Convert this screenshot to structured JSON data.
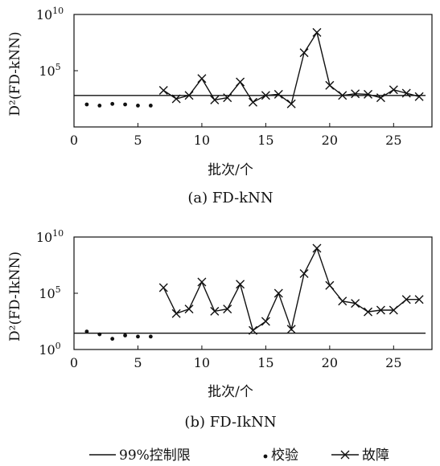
{
  "chart_data": [
    {
      "type": "line",
      "caption": "(a)  FD-kNN",
      "ylabel": "D²(FD-kNN)",
      "xlabel": "批次/个",
      "xlim": [
        0,
        28
      ],
      "ylim_log10": [
        0,
        10
      ],
      "y_scale": "log",
      "x_ticks": [
        0,
        5,
        10,
        15,
        20,
        25
      ],
      "y_ticks": [
        {
          "label": "10",
          "sup": "10",
          "log10": 10
        },
        {
          "label": "10",
          "sup": "5",
          "log10": 5
        }
      ],
      "control_limit_log10": 2.8,
      "series": [
        {
          "name": "校验",
          "x": [
            1,
            2,
            3,
            4,
            5,
            6
          ],
          "y_log10": [
            2.0,
            1.9,
            2.05,
            2.0,
            1.9,
            1.9
          ]
        },
        {
          "name": "故障",
          "x": [
            7,
            8,
            9,
            10,
            11,
            12,
            13,
            14,
            15,
            16,
            17,
            18,
            19,
            20,
            21,
            22,
            23,
            24,
            25,
            26,
            27
          ],
          "y_log10": [
            3.25,
            2.5,
            2.8,
            4.3,
            2.4,
            2.6,
            4.0,
            2.2,
            2.8,
            2.9,
            2.05,
            6.6,
            8.4,
            3.7,
            2.8,
            2.95,
            2.9,
            2.6,
            3.3,
            3.0,
            2.7
          ]
        }
      ]
    },
    {
      "type": "line",
      "caption": "(b)  FD-ⅠkNN",
      "ylabel": "D²(FD-ⅠkNN)",
      "xlabel": "批次/个",
      "xlim": [
        0,
        28
      ],
      "ylim_log10": [
        0,
        10
      ],
      "y_scale": "log",
      "x_ticks": [
        0,
        5,
        10,
        15,
        20,
        25
      ],
      "y_ticks": [
        {
          "label": "10",
          "sup": "10",
          "log10": 10
        },
        {
          "label": "10",
          "sup": "5",
          "log10": 5
        },
        {
          "label": "10",
          "sup": "0",
          "log10": 0
        }
      ],
      "control_limit_log10": 1.45,
      "series": [
        {
          "name": "校验",
          "x": [
            1,
            2,
            3,
            4,
            5,
            6
          ],
          "y_log10": [
            1.6,
            1.35,
            0.95,
            1.25,
            1.15,
            1.15
          ]
        },
        {
          "name": "故障",
          "x": [
            7,
            8,
            9,
            10,
            11,
            12,
            13,
            14,
            15,
            16,
            17,
            18,
            19,
            20,
            21,
            22,
            23,
            24,
            25,
            26,
            27
          ],
          "y_log10": [
            5.5,
            3.2,
            3.6,
            6.0,
            3.4,
            3.6,
            5.8,
            1.7,
            2.5,
            5.0,
            1.8,
            6.75,
            9.0,
            5.7,
            4.3,
            4.1,
            3.35,
            3.5,
            3.5,
            4.45,
            4.45
          ]
        }
      ]
    }
  ],
  "legend": {
    "control_label": "99%控制限",
    "calib_label": "校验",
    "fault_label": "故障"
  }
}
